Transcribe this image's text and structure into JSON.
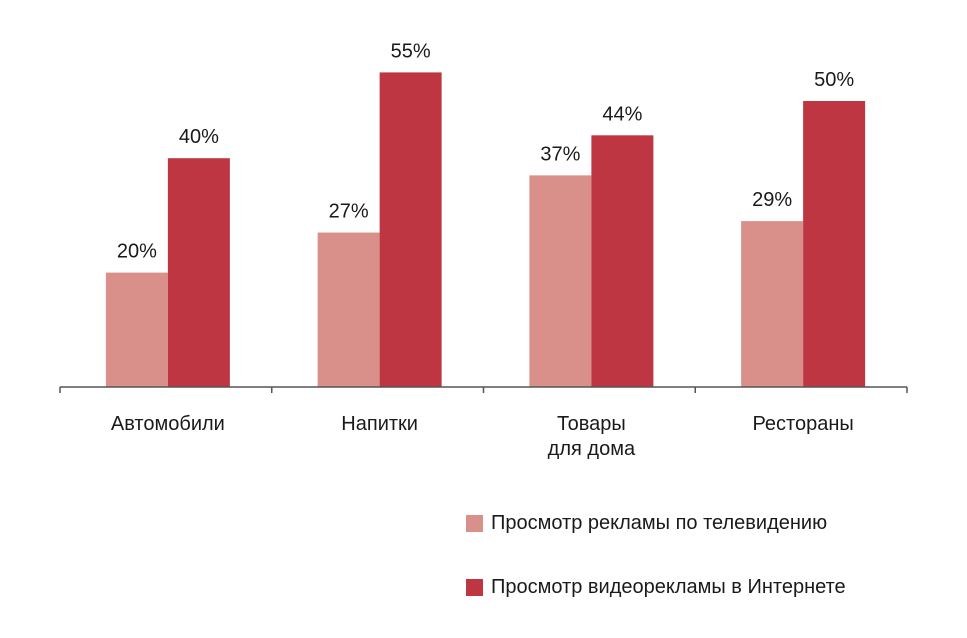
{
  "chart_data": {
    "type": "bar",
    "categories": [
      [
        "Автомобили"
      ],
      [
        "Напитки"
      ],
      [
        "Товары",
        "для дома"
      ],
      [
        "Рестораны"
      ]
    ],
    "series": [
      {
        "name": "Просмотр рекламы по телевидению",
        "values": [
          20,
          27,
          37,
          29
        ],
        "labels": [
          "20%",
          "27%",
          "37%",
          "29%"
        ],
        "color": "#d9908a"
      },
      {
        "name": "Просмотр видеорекламы в Интернете",
        "values": [
          40,
          55,
          44,
          50
        ],
        "labels": [
          "40%",
          "55%",
          "44%",
          "50%"
        ],
        "color": "#be3641"
      }
    ],
    "ylim": [
      0,
      60
    ],
    "grid": false,
    "legend_position": "bottom-right"
  },
  "legend": {
    "items": [
      {
        "label": "Просмотр рекламы по телевидению",
        "color": "#d9908a"
      },
      {
        "label": "Просмотр видеорекламы в Интернете",
        "color": "#be3641"
      }
    ]
  }
}
